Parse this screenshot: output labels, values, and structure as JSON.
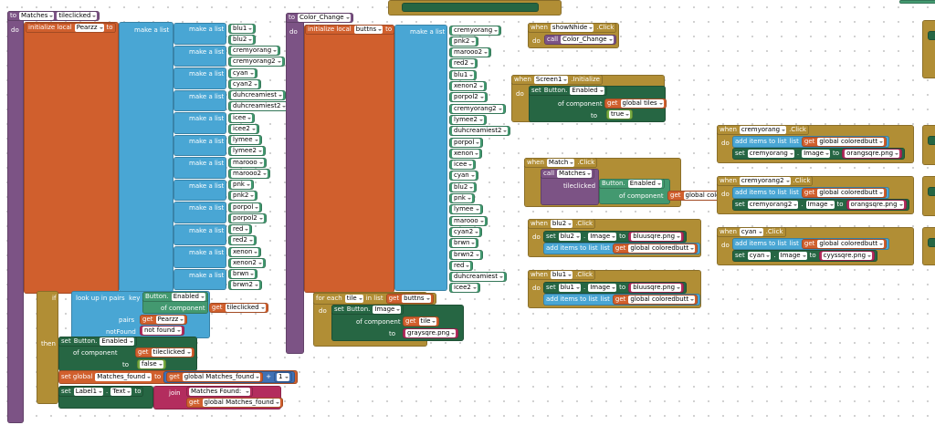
{
  "words": {
    "to": "to",
    "do": "do",
    "in": "in",
    "if": "if",
    "then": "then",
    "set": "set",
    "get": "get",
    "when": "when",
    "call": "call",
    "make_a_list": "make a list",
    "initialize_local": "initialize local",
    "of_component": "of component",
    "dot": ".",
    "add_items": "add items to list",
    "list": "list",
    "for_each": "for each",
    "in_list": "in list",
    "join": "join",
    "plus": "+",
    "lookup_key": "look up in pairs  key",
    "pairs": "pairs",
    "not_found_label": "notFound",
    "set_global": "set global",
    "button": "Button."
  },
  "procedures": [
    {
      "name": "Matches",
      "param": "tileclicked",
      "local": "Pearzz",
      "items": [
        "blu1",
        "blu2",
        "cremyorang",
        "cremyorang2",
        "cyan",
        "cyan2",
        "duhcreamiest",
        "duhcreamiest2",
        "icee",
        "icee2",
        "lymee",
        "lymee2",
        "marooo",
        "marooo2",
        "pnk",
        "pnk2",
        "porpol",
        "porpol2",
        "red",
        "red2",
        "xenon",
        "xenon2",
        "brwn",
        "brwn2"
      ],
      "lookup_property": "Enabled",
      "lookup_component": "tileclicked",
      "pairs_var": "Pearzz",
      "not_found": "not found",
      "set_property": "Enabled",
      "set_component": "tileclicked",
      "set_value": "false",
      "global_var": "Matches_found",
      "global_get": "global Matches_found",
      "increment": 1,
      "label_component": "Label1",
      "label_property": "Text",
      "join_text": "Matches Found: ",
      "join_get": "global Matches_found"
    },
    {
      "name": "Color_Change",
      "local": "buttns",
      "items": [
        "cremyorang",
        "pnk2",
        "marooo2",
        "red2",
        "blu1",
        "xenon2",
        "porpol2",
        "cremyorang2",
        "lymee2",
        "duhcreamiest2",
        "porpol",
        "xenon",
        "icee",
        "cyan",
        "blu2",
        "pnk",
        "lymee",
        "marooo",
        "cyan2",
        "brwn",
        "brwn2",
        "red",
        "duhcreamiest",
        "icee2"
      ],
      "loop_var": "tile",
      "loop_list": "buttns",
      "set_property": "Image",
      "set_component": "tile",
      "set_value": "graysqre.png"
    }
  ],
  "events": [
    {
      "component": "showNhide",
      "event": ".Click",
      "call": "Color_Change"
    },
    {
      "component": "Screen1",
      "event": ".Initialize",
      "set_property": "Enabled",
      "set_component": "global tiles",
      "set_value": "true"
    },
    {
      "component": "Match",
      "event": ".Click",
      "call": "Matches",
      "call_param": "tileclicked",
      "arg_property": "Enabled",
      "arg_component": "global coloredbutt"
    },
    {
      "component": "blu2",
      "event": ".Click",
      "set_component": "blu2",
      "set_property": "Image",
      "set_value": "bluusqre.png",
      "list": "global coloredbutt"
    },
    {
      "component": "blu1",
      "event": ".Click",
      "set_component": "blu1",
      "set_property": "Image",
      "set_value": "bluusqre.png",
      "list": "global coloredbutt"
    },
    {
      "component": "cremyorang",
      "event": ".Click",
      "set_component": "cremyorang",
      "set_property": "Image",
      "set_value": "orangsqre.png",
      "list": "global coloredbutt"
    },
    {
      "component": "cremyorang2",
      "event": ".Click",
      "set_component": "cremyorang2",
      "set_property": "Image",
      "set_value": "orangsqre.png",
      "list": "global coloredbutt"
    },
    {
      "component": "cyan",
      "event": ".Click",
      "set_component": "cyan",
      "set_property": "Image",
      "set_value": "cyyssqre.png",
      "list": "global coloredbutt"
    }
  ]
}
